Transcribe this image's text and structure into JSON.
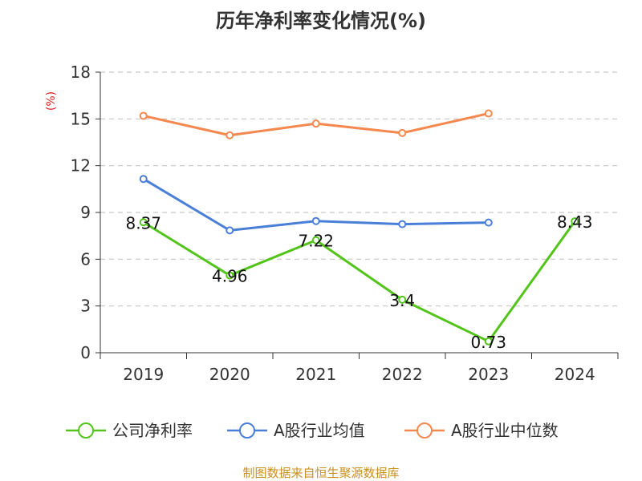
{
  "chart_data": {
    "type": "line",
    "title": "历年净利率变化情况(%)",
    "ylabel": "(%)",
    "xlabel": "",
    "categories": [
      "2019",
      "2020",
      "2021",
      "2022",
      "2023",
      "2024"
    ],
    "ylim": [
      0,
      18
    ],
    "yticks": [
      0,
      3,
      6,
      9,
      12,
      15,
      18
    ],
    "grid": true,
    "legend_position": "bottom",
    "series": [
      {
        "name": "公司净利率",
        "color": "#52c41a",
        "values": [
          8.37,
          4.96,
          7.22,
          3.4,
          0.73,
          8.43
        ],
        "show_labels": true
      },
      {
        "name": "A股行业均值",
        "color": "#4a7fd8",
        "values": [
          11.15,
          7.85,
          8.45,
          8.25,
          8.35,
          null
        ],
        "show_labels": false
      },
      {
        "name": "A股行业中位数",
        "color": "#f4884f",
        "values": [
          15.2,
          13.95,
          14.7,
          14.1,
          15.35,
          null
        ],
        "show_labels": false
      }
    ]
  },
  "source": "制图数据来自恒生聚源数据库"
}
